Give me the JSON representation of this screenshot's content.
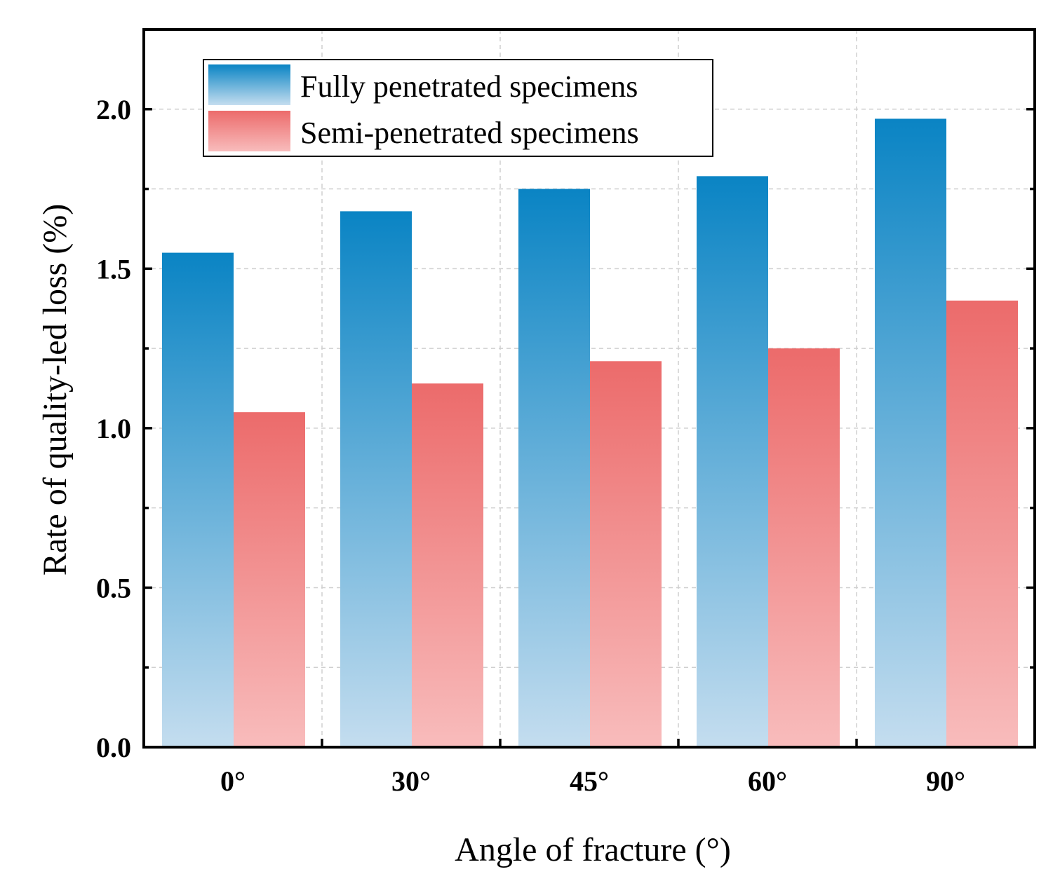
{
  "chart_data": {
    "type": "bar",
    "categories": [
      "0°",
      "30°",
      "45°",
      "60°",
      "90°"
    ],
    "series": [
      {
        "name": "Fully penetrated specimens",
        "values": [
          1.55,
          1.68,
          1.75,
          1.79,
          1.97
        ],
        "color_top": "#0a84c4",
        "color_bottom": "#c4ddef"
      },
      {
        "name": "Semi-penetrated specimens",
        "values": [
          1.05,
          1.14,
          1.21,
          1.25,
          1.4
        ],
        "color_top": "#ec6b6b",
        "color_bottom": "#f8bcbc"
      }
    ],
    "xlabel": "Angle of fracture (°)",
    "ylabel": "Rate of quality-led loss (%)",
    "ylim": [
      0,
      2.25
    ],
    "yticks": [
      "0.0",
      "0.5",
      "1.0",
      "1.5",
      "2.0"
    ],
    "ytick_values": [
      0,
      0.5,
      1.0,
      1.5,
      2.0
    ],
    "yminor_values": [
      0.25,
      0.75,
      1.25,
      1.75
    ],
    "grid": true,
    "legend_position": "top-left"
  }
}
